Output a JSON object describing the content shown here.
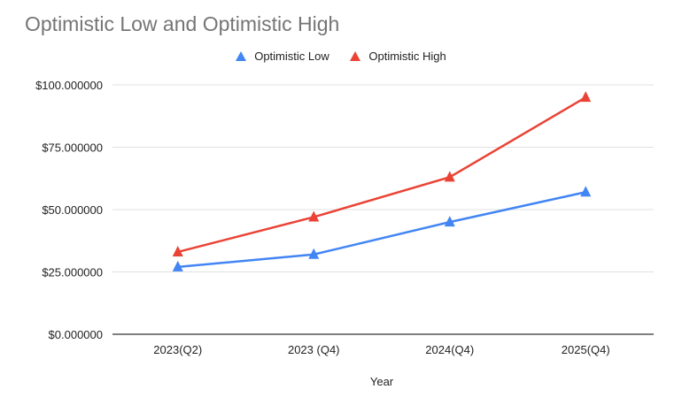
{
  "chart_data": {
    "type": "line",
    "title": "Optimistic Low and Optimistic High",
    "xlabel": "Year",
    "ylabel": "",
    "categories": [
      "2023(Q2)",
      "2023 (Q4)",
      "2024(Q4)",
      "2025(Q4)"
    ],
    "series": [
      {
        "name": "Optimistic Low",
        "color": "#4285f4",
        "values": [
          27,
          32,
          45,
          57
        ]
      },
      {
        "name": "Optimistic High",
        "color": "#ea4335",
        "values": [
          33,
          47,
          63,
          95
        ]
      }
    ],
    "ylim": [
      0,
      100
    ],
    "yticks": [
      0,
      25,
      50,
      75,
      100
    ],
    "ytick_labels": [
      "$0.000000",
      "$25.000000",
      "$50.000000",
      "$75.000000",
      "$100.000000"
    ],
    "grid": true,
    "legend_position": "top-center",
    "marker": "triangle"
  }
}
